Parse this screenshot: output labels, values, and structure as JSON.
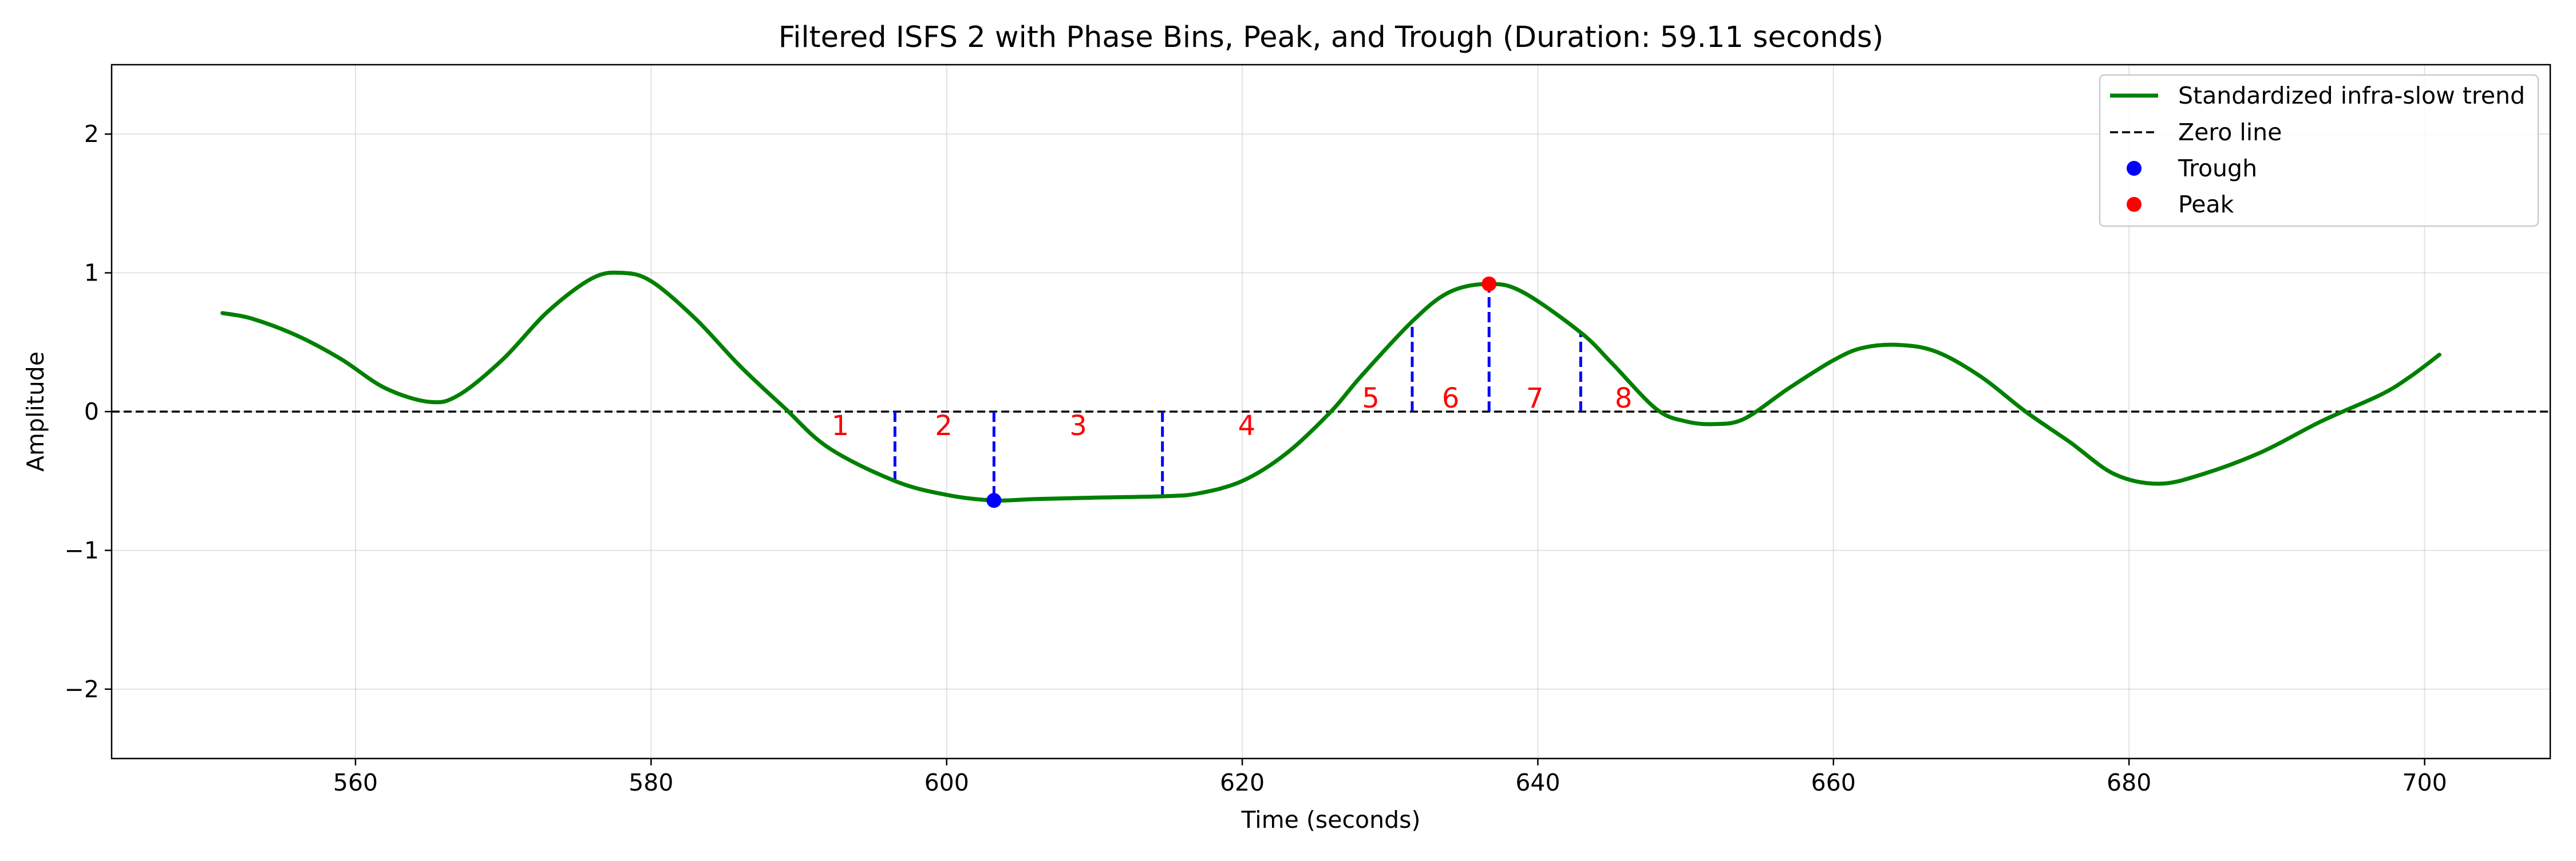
{
  "chart_data": {
    "type": "line",
    "title": "Filtered ISFS 2 with Phase Bins, Peak, and Trough (Duration: 59.11 seconds)",
    "xlabel": "Time (seconds)",
    "ylabel": "Amplitude",
    "xlim": [
      543.5,
      708.5
    ],
    "ylim": [
      -2.5,
      2.5
    ],
    "x_ticks": [
      560,
      580,
      600,
      620,
      640,
      660,
      680,
      700
    ],
    "y_ticks": [
      -2,
      -1,
      0,
      1,
      2
    ],
    "x_tick_labels": [
      "560",
      "580",
      "600",
      "620",
      "640",
      "660",
      "680",
      "700"
    ],
    "y_tick_labels": [
      "−2",
      "−1",
      "0",
      "1",
      "2"
    ],
    "grid": true,
    "legend_position": "top-right",
    "legend": [
      {
        "label": "Standardized infra-slow trend",
        "kind": "line",
        "color": "#008000"
      },
      {
        "label": "Zero line",
        "kind": "dashed-line",
        "color": "#000000"
      },
      {
        "label": "Trough",
        "kind": "marker",
        "color": "#0000ff"
      },
      {
        "label": "Peak",
        "kind": "marker",
        "color": "#ff0000"
      }
    ],
    "series": [
      {
        "name": "Standardized infra-slow trend",
        "color": "#008000",
        "points": [
          [
            551,
            0.71
          ],
          [
            553,
            0.67
          ],
          [
            556,
            0.55
          ],
          [
            559,
            0.38
          ],
          [
            562,
            0.17
          ],
          [
            565,
            0.07
          ],
          [
            567,
            0.12
          ],
          [
            570,
            0.38
          ],
          [
            573,
            0.72
          ],
          [
            576,
            0.96
          ],
          [
            578,
            1.0
          ],
          [
            580,
            0.94
          ],
          [
            583,
            0.67
          ],
          [
            586,
            0.33
          ],
          [
            589,
            0.03
          ],
          [
            592,
            -0.26
          ],
          [
            596.5,
            -0.5
          ],
          [
            600,
            -0.6
          ],
          [
            603.2,
            -0.64
          ],
          [
            606,
            -0.63
          ],
          [
            610,
            -0.62
          ],
          [
            614.6,
            -0.61
          ],
          [
            617,
            -0.59
          ],
          [
            620,
            -0.5
          ],
          [
            623,
            -0.3
          ],
          [
            626,
            0.0
          ],
          [
            628,
            0.25
          ],
          [
            631.5,
            0.65
          ],
          [
            634,
            0.86
          ],
          [
            636.7,
            0.92
          ],
          [
            639,
            0.86
          ],
          [
            642.9,
            0.57
          ],
          [
            645,
            0.35
          ],
          [
            648,
            0.02
          ],
          [
            650,
            -0.07
          ],
          [
            652,
            -0.09
          ],
          [
            654,
            -0.05
          ],
          [
            657,
            0.17
          ],
          [
            660,
            0.37
          ],
          [
            662,
            0.46
          ],
          [
            664.5,
            0.48
          ],
          [
            667,
            0.43
          ],
          [
            670,
            0.25
          ],
          [
            673,
            0.0
          ],
          [
            676,
            -0.22
          ],
          [
            679,
            -0.45
          ],
          [
            682,
            -0.52
          ],
          [
            685,
            -0.45
          ],
          [
            689,
            -0.29
          ],
          [
            693,
            -0.07
          ],
          [
            697,
            0.12
          ],
          [
            699,
            0.25
          ],
          [
            701,
            0.41
          ]
        ]
      }
    ],
    "zero_line": {
      "y": 0,
      "color": "#000000",
      "style": "dashed"
    },
    "trough": {
      "x": 603.2,
      "y": -0.64,
      "color": "#0000ff"
    },
    "peak": {
      "x": 636.7,
      "y": 0.92,
      "color": "#ff0000"
    },
    "phase_boundaries": [
      {
        "x": 596.5,
        "y": -0.5
      },
      {
        "x": 603.2,
        "y": -0.64
      },
      {
        "x": 614.6,
        "y": -0.61
      },
      {
        "x": 631.5,
        "y": 0.65
      },
      {
        "x": 636.7,
        "y": 0.92
      },
      {
        "x": 642.9,
        "y": 0.57
      }
    ],
    "phase_boundary_color": "#0000ff",
    "phase_bin_labels": [
      {
        "text": "1",
        "x": 592.8,
        "y": -0.1
      },
      {
        "text": "2",
        "x": 599.8,
        "y": -0.1
      },
      {
        "text": "3",
        "x": 608.9,
        "y": -0.1
      },
      {
        "text": "4",
        "x": 620.3,
        "y": -0.1
      },
      {
        "text": "5",
        "x": 628.7,
        "y": 0.1
      },
      {
        "text": "6",
        "x": 634.1,
        "y": 0.1
      },
      {
        "text": "7",
        "x": 639.8,
        "y": 0.1
      },
      {
        "text": "8",
        "x": 645.8,
        "y": 0.1
      }
    ],
    "phase_label_color": "#ff0000"
  }
}
